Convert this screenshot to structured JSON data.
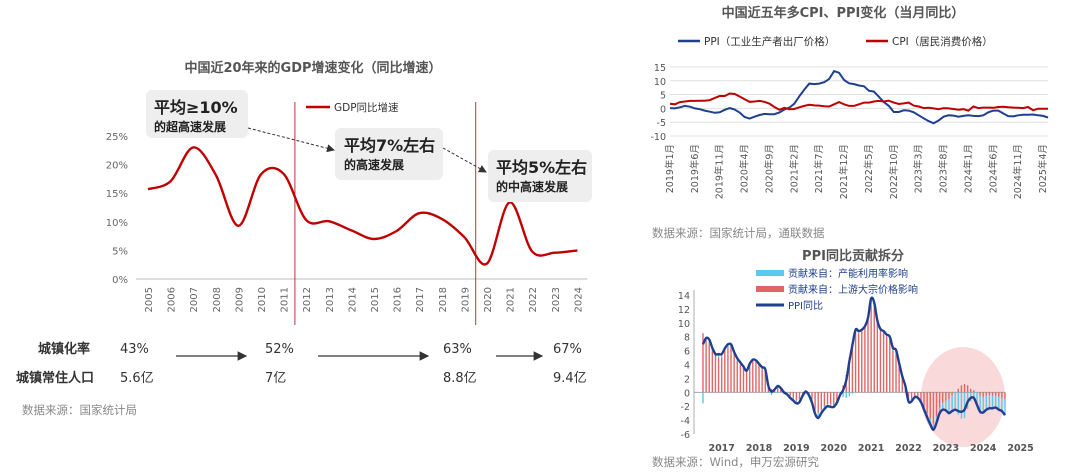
{
  "gdp_chart": {
    "title": "中国近20年来的GDP增速变化（同比增速）",
    "legend": "GDP同比增速",
    "colors": {
      "line": "#c00000",
      "divider": "#b23a3a",
      "callout_bg": "#eeeeee",
      "arrow": "#333333"
    },
    "callouts": [
      {
        "big": "平均≥10%",
        "sub": "的超高速发展"
      },
      {
        "big": "平均7%左右",
        "sub": "的高速发展"
      },
      {
        "big": "平均5%左右",
        "sub": "的中高速发展"
      }
    ],
    "urbanization": {
      "labels": [
        "城镇化率",
        "城镇常住人口"
      ],
      "rate": [
        "43%",
        "52%",
        "63%",
        "67%"
      ],
      "population": [
        "5.6亿",
        "7亿",
        "8.8亿",
        "9.4亿"
      ]
    },
    "source": "数据来源：国家统计局"
  },
  "cpi_chart": {
    "title": "中国近五年多CPI、PPI变化（当月同比）",
    "legend": [
      "PPI（工业生产者出厂价格）",
      "CPI（居民消费价格）"
    ],
    "colors": {
      "ppi": "#1f3f8f",
      "cpi": "#c00000"
    },
    "source": "数据来源：国家统计局，通联数据"
  },
  "ppi_chart": {
    "title": "PPI同比贡献拆分",
    "legend": [
      "贡献来自：产能利用率影响",
      "贡献来自：上游大宗价格影响",
      "PPI同比"
    ],
    "colors": {
      "capacity": "#5bc8f0",
      "commodity": "#e06666",
      "ppi": "#1f3f8f",
      "highlight": "#f6c9c9"
    },
    "source": "数据来源：Wind，申万宏源研究"
  },
  "chart_data": [
    {
      "type": "line",
      "title": "中国近20年来的GDP增速变化（同比增速）",
      "categories": [
        "2005",
        "2006",
        "2007",
        "2008",
        "2009",
        "2010",
        "2011",
        "2012",
        "2013",
        "2014",
        "2015",
        "2016",
        "2017",
        "2018",
        "2019",
        "2020",
        "2021",
        "2022",
        "2023",
        "2024"
      ],
      "series": [
        {
          "name": "GDP同比增速",
          "values": [
            15.7,
            17.1,
            23.0,
            18.2,
            9.3,
            18.3,
            18.4,
            10.3,
            10.1,
            8.5,
            7.0,
            8.4,
            11.5,
            10.5,
            7.3,
            2.7,
            13.4,
            4.8,
            4.6,
            5.0
          ]
        }
      ],
      "yticks": [
        "0%",
        "5%",
        "10%",
        "15%",
        "20%",
        "25%"
      ],
      "ylim": [
        0,
        25
      ],
      "dividers_after": [
        "2011",
        "2019"
      ]
    },
    {
      "type": "line",
      "title": "中国近五年多CPI、PPI变化（当月同比）",
      "x_ticks": [
        "2019年1月",
        "2019年6月",
        "2019年11月",
        "2020年4月",
        "2020年9月",
        "2021年2月",
        "2021年7月",
        "2021年12月",
        "2022年5月",
        "2022年10月",
        "2023年3月",
        "2023年8月",
        "2024年1月",
        "2024年6月",
        "2024年11月",
        "2025年4月"
      ],
      "yticks": [
        "-10",
        "-5",
        "0",
        "5",
        "10",
        "15"
      ],
      "ylim": [
        -10,
        15
      ],
      "series": [
        {
          "name": "PPI（工业生产者出厂价格）",
          "values": [
            0.1,
            0.0,
            0.4,
            0.9,
            0.6,
            0.0,
            -0.3,
            -0.8,
            -1.2,
            -1.6,
            -1.4,
            -0.5,
            0.1,
            -0.4,
            -1.5,
            -3.1,
            -3.7,
            -3.0,
            -2.4,
            -2.0,
            -2.1,
            -2.1,
            -1.5,
            -0.4,
            0.3,
            1.7,
            4.4,
            6.8,
            9.0,
            8.8,
            9.0,
            9.5,
            10.7,
            13.5,
            12.9,
            10.3,
            9.1,
            8.8,
            8.3,
            8.0,
            6.4,
            6.1,
            4.2,
            2.3,
            0.9,
            -1.3,
            -1.3,
            -0.7,
            -0.8,
            -1.4,
            -2.5,
            -3.6,
            -4.6,
            -5.4,
            -4.4,
            -3.0,
            -2.5,
            -2.6,
            -3.0,
            -2.7,
            -2.5,
            -2.7,
            -2.8,
            -2.5,
            -1.4,
            -0.8,
            -0.8,
            -1.8,
            -2.8,
            -2.9,
            -2.5,
            -2.3,
            -2.3,
            -2.2,
            -2.5,
            -2.7,
            -3.3
          ]
        },
        {
          "name": "CPI（居民消费价格）",
          "values": [
            1.7,
            1.5,
            2.3,
            2.5,
            2.7,
            2.7,
            2.8,
            2.8,
            3.0,
            3.8,
            4.5,
            4.5,
            5.4,
            5.2,
            4.3,
            3.3,
            2.4,
            2.5,
            2.7,
            2.4,
            1.7,
            0.5,
            -0.5,
            0.2,
            -0.3,
            -0.2,
            0.4,
            0.9,
            1.3,
            1.1,
            1.0,
            0.8,
            0.7,
            1.5,
            2.3,
            1.5,
            0.9,
            0.9,
            1.5,
            2.1,
            2.1,
            2.5,
            2.7,
            2.5,
            2.8,
            2.1,
            1.6,
            1.8,
            2.1,
            1.0,
            0.7,
            0.1,
            0.2,
            0.0,
            -0.3,
            0.1,
            0.0,
            -0.2,
            -0.5,
            -0.3,
            -0.8,
            0.7,
            0.1,
            0.3,
            0.3,
            0.2,
            0.5,
            0.6,
            0.4,
            0.3,
            0.2,
            0.1,
            0.5,
            -0.7,
            -0.1,
            -0.1,
            -0.1
          ]
        }
      ]
    },
    {
      "type": "bar",
      "title": "PPI同比贡献拆分",
      "x_ticks": [
        "2017",
        "2018",
        "2019",
        "2020",
        "2021",
        "2022",
        "2023",
        "2024",
        "2025"
      ],
      "yticks": [
        "-6",
        "-4",
        "-2",
        "0",
        "2",
        "4",
        "6",
        "8",
        "10",
        "12",
        "14"
      ],
      "ylim": [
        -6,
        14
      ],
      "series": [
        {
          "name": "PPI同比",
          "values": [
            6.9,
            7.8,
            7.6,
            6.4,
            5.5,
            5.5,
            5.5,
            6.3,
            6.9,
            6.9,
            5.8,
            4.9,
            4.3,
            3.7,
            3.1,
            4.1,
            4.7,
            4.6,
            4.1,
            3.6,
            3.3,
            0.9,
            0.1,
            0.4,
            0.9,
            0.6,
            0.0,
            -0.3,
            -0.8,
            -1.2,
            -1.6,
            -1.4,
            -0.5,
            0.1,
            -0.4,
            -1.5,
            -3.1,
            -3.7,
            -3.0,
            -2.4,
            -2.0,
            -2.1,
            -2.1,
            -1.5,
            -0.4,
            0.3,
            1.7,
            4.4,
            6.8,
            9.0,
            8.8,
            9.0,
            9.5,
            10.7,
            13.5,
            12.9,
            10.3,
            9.1,
            8.8,
            8.3,
            8.0,
            6.4,
            6.1,
            4.2,
            2.3,
            0.9,
            -1.3,
            -1.3,
            -0.7,
            -0.8,
            -1.4,
            -2.5,
            -3.6,
            -4.6,
            -5.4,
            -4.4,
            -3.0,
            -2.5,
            -2.6,
            -3.0,
            -2.7,
            -2.5,
            -2.7,
            -2.8,
            -2.5,
            -1.4,
            -0.8,
            -0.8,
            -1.8,
            -2.8,
            -2.9,
            -2.5,
            -2.3,
            -2.3,
            -2.2,
            -2.5,
            -2.7,
            -3.3
          ]
        },
        {
          "name": "贡献来自：上游大宗价格影响",
          "values": [
            8.5,
            7.5,
            7.0,
            6.0,
            5.5,
            5.0,
            5.0,
            6.0,
            6.5,
            6.5,
            5.5,
            4.5,
            4.0,
            3.5,
            3.0,
            4.0,
            4.5,
            4.5,
            4.0,
            3.5,
            3.0,
            1.0,
            0.5,
            0.5,
            1.0,
            0.5,
            0.2,
            0.0,
            -0.5,
            -0.8,
            -1.2,
            -1.0,
            -0.3,
            0.3,
            -0.2,
            -1.0,
            -2.5,
            -3.0,
            -2.5,
            -2.0,
            -1.7,
            -1.8,
            -1.8,
            -1.2,
            0.0,
            1.0,
            2.5,
            5.0,
            7.0,
            8.5,
            8.5,
            9.0,
            9.5,
            10.5,
            12.5,
            12.0,
            10.0,
            9.0,
            8.5,
            8.0,
            7.5,
            6.0,
            5.5,
            4.0,
            2.0,
            0.5,
            -1.0,
            -1.2,
            -0.7,
            -0.8,
            -1.2,
            -2.2,
            -3.0,
            -3.8,
            -4.5,
            -3.5,
            -2.2,
            -1.5,
            -1.2,
            -1.0,
            -0.5,
            0.0,
            0.5,
            1.0,
            1.2,
            1.0,
            0.5,
            0.3,
            0.0,
            -0.5,
            -0.7,
            -0.5,
            -0.4,
            -0.5,
            -0.5,
            -0.6,
            -0.8,
            -1.0
          ]
        },
        {
          "name": "贡献来自：产能利用率影响",
          "values": [
            -1.6,
            0.3,
            0.6,
            0.4,
            0.0,
            0.5,
            0.5,
            0.3,
            0.4,
            0.4,
            0.3,
            0.4,
            0.3,
            0.2,
            0.1,
            0.1,
            0.2,
            0.1,
            0.1,
            0.1,
            0.3,
            -0.1,
            -0.4,
            -0.1,
            -0.1,
            0.1,
            -0.2,
            -0.3,
            -0.3,
            -0.4,
            -0.4,
            -0.4,
            -0.2,
            -0.2,
            -0.2,
            -0.5,
            -0.6,
            -0.7,
            -0.5,
            -0.4,
            -0.3,
            -0.3,
            -0.3,
            -0.3,
            -0.4,
            -0.7,
            -0.8,
            -0.6,
            -0.2,
            0.5,
            0.3,
            0.0,
            0.0,
            0.2,
            1.0,
            0.9,
            0.3,
            0.1,
            0.3,
            0.3,
            0.5,
            0.4,
            0.6,
            0.2,
            0.3,
            0.4,
            -0.3,
            -0.1,
            0.0,
            0.0,
            -0.2,
            -0.3,
            -0.6,
            -0.8,
            -0.9,
            -0.9,
            -0.8,
            -1.0,
            -1.4,
            -2.0,
            -2.2,
            -2.5,
            -3.2,
            -3.8,
            -3.7,
            -2.4,
            -1.3,
            -1.1,
            -1.8,
            -2.3,
            -2.2,
            -2.0,
            -1.9,
            -1.8,
            -1.7,
            -1.9,
            -1.9,
            -2.3
          ]
        }
      ]
    }
  ]
}
